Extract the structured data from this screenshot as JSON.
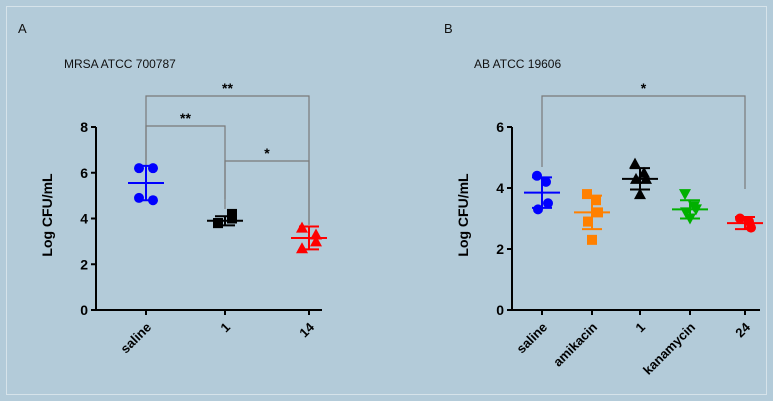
{
  "chart_data": [
    {
      "panel": "A",
      "title": "MRSA ATCC 700787",
      "type": "scatter",
      "ylabel": "Log CFU/mL",
      "ylim": [
        0,
        8
      ],
      "yticks": [
        0,
        2,
        4,
        6,
        8
      ],
      "categories": [
        "saline",
        "1",
        "14"
      ],
      "groups": [
        {
          "category": "saline",
          "color": "#0000ff",
          "marker": "circle",
          "points": [
            6.2,
            6.2,
            4.8,
            4.9
          ],
          "mean": 5.55,
          "error": [
            4.8,
            6.3
          ]
        },
        {
          "category": "1",
          "color": "#000000",
          "marker": "square",
          "points": [
            3.8,
            4.0,
            4.2,
            3.8
          ],
          "mean": 3.9,
          "error": [
            3.7,
            4.1
          ]
        },
        {
          "category": "14",
          "color": "#ff0000",
          "marker": "triangle",
          "points": [
            3.6,
            3.3,
            3.0,
            2.7
          ],
          "mean": 3.15,
          "error": [
            2.65,
            3.65
          ]
        }
      ],
      "significance": [
        {
          "from": "saline",
          "to": "14",
          "label": "**"
        },
        {
          "from": "saline",
          "to": "1",
          "label": "**"
        },
        {
          "from": "1",
          "to": "14",
          "label": "*"
        }
      ]
    },
    {
      "panel": "B",
      "title": "AB ATCC 19606",
      "type": "scatter",
      "ylabel": "Log CFU/mL",
      "ylim": [
        0,
        6
      ],
      "yticks": [
        0,
        2,
        4,
        6
      ],
      "categories": [
        "saline",
        "amikacin",
        "1",
        "kanamycin",
        "24"
      ],
      "groups": [
        {
          "category": "saline",
          "color": "#0000ff",
          "marker": "circle",
          "points": [
            4.4,
            4.2,
            3.5,
            3.3
          ],
          "mean": 3.85,
          "error": [
            3.35,
            4.35
          ]
        },
        {
          "category": "amikacin",
          "color": "#ff8000",
          "marker": "square",
          "points": [
            3.8,
            3.6,
            3.2,
            2.9,
            2.3
          ],
          "mean": 3.2,
          "error": [
            2.65,
            3.75
          ]
        },
        {
          "category": "1",
          "color": "#000000",
          "marker": "triangle",
          "points": [
            4.8,
            4.5,
            4.3,
            4.3,
            3.8
          ],
          "mean": 4.3,
          "error": [
            3.95,
            4.65
          ]
        },
        {
          "category": "kanamycin",
          "color": "#00b000",
          "marker": "triangle-down",
          "points": [
            3.8,
            3.4,
            3.3,
            3.2,
            3.0
          ],
          "mean": 3.3,
          "error": [
            3.0,
            3.6
          ]
        },
        {
          "category": "24",
          "color": "#ff0000",
          "marker": "circle",
          "points": [
            3.0,
            2.9,
            2.7
          ],
          "mean": 2.85,
          "error": [
            2.65,
            3.05
          ]
        }
      ],
      "significance": [
        {
          "from": "saline",
          "to": "24",
          "label": "*"
        }
      ]
    }
  ]
}
